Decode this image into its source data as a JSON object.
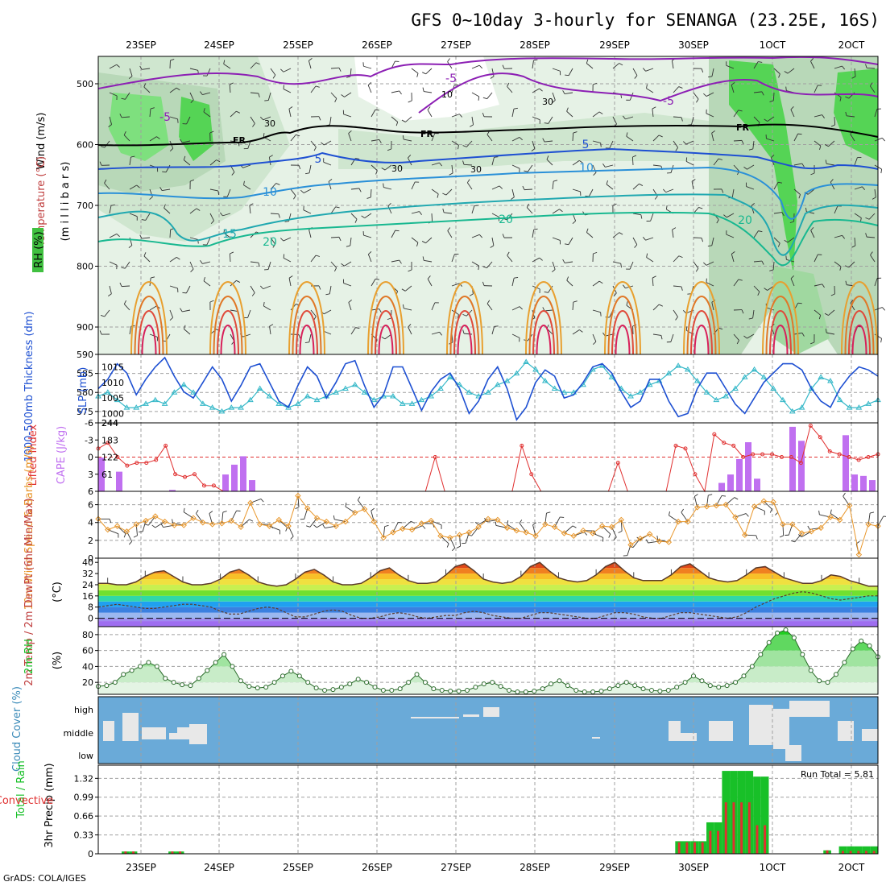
{
  "title": "GFS 0~10day 3-hourly for SENANGA (23.25E, 16S)",
  "footer": "GrADS: COLA/IGES",
  "dates": [
    "23SEP",
    "24SEP",
    "25SEP",
    "26SEP",
    "27SEP",
    "28SEP",
    "29SEP",
    "30SEP",
    "1OCT",
    "2OCT"
  ],
  "colors": {
    "purple": "#8c1fb4",
    "blue": "#1e50d2",
    "cyan": "#35b8c8",
    "green": "#18c028",
    "red": "#e03030",
    "orange": "#e8962a",
    "cape": "#c070f0",
    "cloud": "#6aaad8"
  },
  "chart_data": [
    {
      "type": "contour",
      "panel": "upper-air",
      "ylabel": "(m i l l i b a r s)",
      "side_labels": [
        "Wind (m/s)",
        "Temperature (°C)",
        "RH (%)"
      ],
      "y_ticks": [
        500,
        600,
        700,
        800,
        900
      ],
      "isotherms": [
        -5,
        5,
        10,
        15,
        20
      ],
      "rh_labels": [
        10,
        30
      ],
      "freezing_label": "FR"
    },
    {
      "type": "line",
      "panel": "thickness-slp",
      "left_label": "1000-500mb Thickness (dm)",
      "right_label": "SLP (mb)",
      "left_ticks": [
        575,
        580,
        585,
        590
      ],
      "right_ticks": [
        1000,
        1005,
        1010,
        1015
      ],
      "series": [
        {
          "name": "SLP (mb)",
          "values": [
            1008,
            1011,
            1016,
            1013,
            1006,
            1011,
            1015,
            1018,
            1012,
            1007,
            1005,
            1010,
            1015,
            1011,
            1004,
            1009,
            1015,
            1016,
            1010,
            1004,
            1002,
            1009,
            1015,
            1012,
            1005,
            1010,
            1016,
            1017,
            1009,
            1002,
            1006,
            1015,
            1015,
            1008,
            1001,
            1007,
            1011,
            1013,
            1008,
            1000,
            1004,
            1011,
            1015,
            1008,
            998,
            1002,
            1010,
            1014,
            1012,
            1005,
            1006,
            1010,
            1015,
            1016,
            1013,
            1007,
            1002,
            1004,
            1011,
            1011,
            1004,
            999,
            1000,
            1008,
            1013,
            1013,
            1008,
            1003,
            1000,
            1005,
            1010,
            1013,
            1016,
            1016,
            1014,
            1008,
            1004,
            1002,
            1008,
            1012,
            1015,
            1014,
            1012
          ]
        },
        {
          "name": "1000-500mb Thickness (dm)",
          "values": [
            579,
            580,
            578,
            576,
            576,
            577,
            578,
            577,
            580,
            582,
            580,
            577,
            576,
            575,
            576,
            576,
            578,
            581,
            579,
            577,
            576,
            577,
            579,
            578,
            579,
            580,
            581,
            582,
            580,
            578,
            579,
            579,
            577,
            577,
            578,
            579,
            581,
            584,
            582,
            580,
            579,
            580,
            582,
            583,
            585,
            588,
            586,
            583,
            581,
            580,
            580,
            582,
            586,
            587,
            584,
            581,
            579,
            580,
            582,
            583,
            585,
            587,
            586,
            583,
            580,
            578,
            579,
            581,
            584,
            586,
            584,
            581,
            578,
            575,
            576,
            581,
            584,
            583,
            578,
            576,
            576,
            577,
            578
          ]
        }
      ]
    },
    {
      "type": "bar+line",
      "panel": "lifted-index-cape",
      "left_label": "Lifted Index",
      "right_label": "CAPE (J/kg)",
      "left_ticks": [
        -6,
        -3,
        0,
        3,
        6
      ],
      "right_ticks": [
        61,
        122,
        183,
        244
      ],
      "lifted_index": [
        -1.5,
        -2.5,
        0,
        1.5,
        1,
        1,
        0.5,
        -2,
        3,
        3.5,
        3,
        5,
        5,
        6,
        6,
        6,
        6,
        6,
        6,
        6,
        6,
        6,
        6,
        6,
        6,
        6,
        6,
        6,
        6,
        6,
        6,
        6,
        6,
        6,
        6,
        0,
        6,
        6,
        6,
        6,
        6,
        6,
        6,
        6,
        -2,
        3,
        6,
        6,
        6,
        6,
        6,
        6,
        6,
        6,
        1,
        6,
        6,
        6,
        6,
        6,
        -2,
        -1.5,
        3,
        6,
        -4,
        -2.5,
        -2,
        0,
        -0.5,
        -0.5,
        -0.5,
        0,
        0,
        1,
        -5.5,
        -3.5,
        -1,
        -0.5,
        0,
        0.5,
        0,
        -0.5
      ]
    },
    {
      "type": "line",
      "panel": "10m-wind",
      "ylabel": "10m Wind Speed & Barbs (m/s)",
      "y_ticks": [
        0,
        2,
        4,
        6
      ],
      "values": [
        4.4,
        3.2,
        3.6,
        3,
        3.8,
        4.2,
        4.7,
        4.1,
        3.7,
        3.7,
        4.5,
        4,
        3.8,
        3.9,
        4.2,
        3.5,
        6.2,
        3.8,
        3.6,
        4.3,
        3.6,
        7.0,
        5.6,
        4.5,
        4.1,
        3.6,
        4.1,
        5.1,
        5.5,
        4.1,
        2.3,
        2.9,
        3.3,
        3.2,
        3.9,
        4.2,
        2.5,
        2.3,
        2.6,
        2.9,
        3.5,
        4.4,
        4.3,
        3.4,
        3.1,
        2.9,
        2.5,
        3.8,
        3.5,
        2.8,
        2.5,
        3.1,
        2.8,
        3.6,
        3.5,
        4.3,
        1.5,
        2.2,
        2.7,
        1.9,
        1.8,
        4.1,
        4.1,
        5.7,
        5.8,
        5.9,
        6.0,
        4.6,
        2.6,
        5.8,
        6.4,
        6.3,
        3.8,
        3.8,
        2.8,
        3.0,
        3.4,
        4.6,
        4.3,
        5.9,
        0.4,
        3.8,
        3.6
      ]
    },
    {
      "type": "area",
      "panel": "2m-temperature",
      "ylabel": "2m Temp / 2m DewPt (6hr Min/Max)",
      "unit": "(°C)",
      "y_ticks": [
        0,
        8,
        16,
        24,
        32,
        40
      ],
      "temp": [
        25,
        25,
        24,
        24,
        26,
        30,
        33,
        34,
        30,
        26,
        24,
        24,
        25,
        28,
        33,
        35,
        31,
        26,
        24,
        23,
        24,
        28,
        33,
        35,
        31,
        26,
        24,
        24,
        25,
        29,
        34,
        36,
        31,
        27,
        25,
        25,
        26,
        31,
        37,
        39,
        34,
        28,
        26,
        25,
        26,
        30,
        37,
        40,
        34,
        29,
        27,
        26,
        27,
        31,
        37,
        40,
        34,
        29,
        27,
        27,
        27,
        31,
        37,
        39,
        34,
        29,
        27,
        26,
        27,
        31,
        36,
        37,
        33,
        29,
        27,
        25,
        25,
        27,
        31,
        30,
        27,
        25,
        23,
        23
      ],
      "dewpt": [
        8,
        9,
        10,
        9,
        8,
        7,
        7,
        8,
        9,
        10,
        10,
        9,
        8,
        5,
        3,
        3,
        5,
        7,
        8,
        7,
        4,
        1,
        1,
        3,
        5,
        6,
        5,
        2,
        0,
        0,
        1,
        3,
        4,
        3,
        1,
        0,
        1,
        2,
        2,
        4,
        5,
        4,
        2,
        1,
        0,
        0,
        2,
        4,
        4,
        3,
        2,
        1,
        0,
        0,
        2,
        4,
        4,
        3,
        1,
        0,
        0,
        2,
        4,
        4,
        3,
        2,
        1,
        0,
        1,
        4,
        8,
        11,
        14,
        16,
        18,
        19,
        18,
        16,
        14,
        13,
        14,
        15,
        16,
        16
      ]
    },
    {
      "type": "area",
      "panel": "2m-rh",
      "ylabel": "2m RH",
      "unit": "(%)",
      "y_ticks": [
        20,
        40,
        60,
        80
      ],
      "values": [
        15,
        16,
        20,
        30,
        35,
        40,
        45,
        40,
        25,
        20,
        17,
        16,
        25,
        35,
        45,
        55,
        40,
        22,
        15,
        13,
        14,
        20,
        28,
        34,
        28,
        20,
        13,
        10,
        11,
        14,
        18,
        24,
        20,
        14,
        10,
        10,
        12,
        20,
        30,
        20,
        12,
        10,
        9,
        9,
        10,
        14,
        18,
        20,
        15,
        10,
        8,
        8,
        9,
        12,
        18,
        22,
        16,
        10,
        8,
        8,
        9,
        12,
        16,
        20,
        16,
        12,
        10,
        9,
        10,
        14,
        20,
        28,
        22,
        16,
        14,
        16,
        20,
        28,
        40,
        55,
        70,
        82,
        86,
        76,
        55,
        35,
        22,
        20,
        30,
        45,
        62,
        72,
        66,
        52
      ]
    },
    {
      "type": "bar",
      "panel": "cloud-cover",
      "ylabel": "Cloud Cover (%)",
      "levels": [
        "high",
        "middle",
        "low"
      ]
    },
    {
      "type": "bar",
      "panel": "precip",
      "ylabel": "3hr Precip (mm)",
      "side_labels": [
        "Total / Rain",
        "Convective"
      ],
      "y_ticks": [
        0,
        0.33,
        0.66,
        0.99,
        1.32
      ],
      "run_total": "Run Total = 5.81",
      "series": [
        {
          "name": "Total / Rain",
          "values": [
            0,
            0,
            0,
            0.04,
            0.04,
            0,
            0,
            0,
            0,
            0.04,
            0.04,
            0,
            0,
            0,
            0,
            0,
            0,
            0,
            0,
            0,
            0,
            0,
            0,
            0,
            0,
            0,
            0,
            0,
            0,
            0,
            0,
            0,
            0,
            0,
            0,
            0,
            0,
            0,
            0,
            0,
            0,
            0,
            0,
            0,
            0,
            0,
            0,
            0,
            0,
            0,
            0,
            0,
            0,
            0,
            0,
            0,
            0,
            0,
            0,
            0,
            0,
            0,
            0,
            0,
            0,
            0,
            0,
            0,
            0,
            0,
            0,
            0,
            0,
            0,
            0.22,
            0.22,
            0.22,
            0.22,
            0.55,
            0.55,
            1.45,
            1.45,
            1.45,
            1.45,
            1.35,
            1.35,
            0,
            0,
            0,
            0,
            0,
            0,
            0,
            0.06,
            0,
            0.13,
            0.13,
            0.13,
            0.13,
            0.13
          ]
        },
        {
          "name": "Convective",
          "values": [
            0,
            0,
            0,
            0.04,
            0.04,
            0,
            0,
            0,
            0,
            0.04,
            0.04,
            0,
            0,
            0,
            0,
            0,
            0,
            0,
            0,
            0,
            0,
            0,
            0,
            0,
            0,
            0,
            0,
            0,
            0,
            0,
            0,
            0,
            0,
            0,
            0,
            0,
            0,
            0,
            0,
            0,
            0,
            0,
            0,
            0,
            0,
            0,
            0,
            0,
            0,
            0,
            0,
            0,
            0,
            0,
            0,
            0,
            0,
            0,
            0,
            0,
            0,
            0,
            0,
            0,
            0,
            0,
            0,
            0,
            0,
            0,
            0,
            0,
            0,
            0,
            0.2,
            0.2,
            0.2,
            0.2,
            0.4,
            0.4,
            0.9,
            0.9,
            0.9,
            0.9,
            0.5,
            0.5,
            0,
            0,
            0,
            0,
            0,
            0,
            0,
            0.06,
            0,
            0.05,
            0.05,
            0.05,
            0.05,
            0.05
          ]
        }
      ]
    }
  ]
}
